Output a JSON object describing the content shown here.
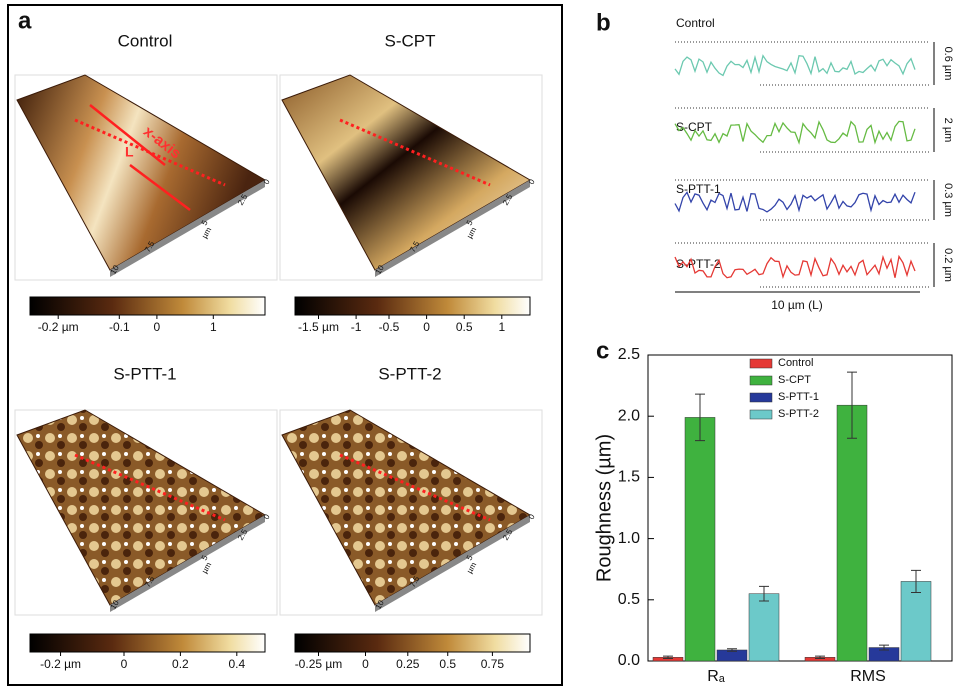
{
  "panel_a": {
    "label": "a",
    "images": [
      {
        "title": "Control",
        "colorbar_ticks": [
          "-0.2 µm",
          "-0.1",
          "0",
          "1"
        ],
        "axis_ticks": [
          "10",
          "7.5",
          "5",
          "µm",
          "2.5",
          "0"
        ],
        "annotations": [
          "x-axis",
          "L"
        ]
      },
      {
        "title": "S-CPT",
        "colorbar_ticks": [
          "-1.5 µm",
          "-1",
          "-0.5",
          "0",
          "0.5",
          "1"
        ],
        "axis_ticks": [
          "10",
          "7.5",
          "5",
          "µm",
          "2.5",
          "0"
        ]
      },
      {
        "title": "S-PTT-1",
        "colorbar_ticks": [
          "-0.2 µm",
          "0",
          "0.2",
          "0.4"
        ],
        "axis_ticks": [
          "10",
          "7.5",
          "5",
          "µm",
          "2.5",
          "0"
        ]
      },
      {
        "title": "S-PTT-2",
        "colorbar_ticks": [
          "-0.25 µm",
          "0",
          "0.25",
          "0.5",
          "0.75"
        ],
        "axis_ticks": [
          "10",
          "7.5",
          "5",
          "µm",
          "2.5",
          "0"
        ]
      }
    ]
  },
  "panel_b": {
    "label": "b",
    "profiles": [
      {
        "name": "Control",
        "range": "0.6 µm"
      },
      {
        "name": "S-CPT",
        "range": "2 µm"
      },
      {
        "name": "S-PTT-1",
        "range": "0.3 µm"
      },
      {
        "name": "S-PTT-2",
        "range": "0.2 µm"
      }
    ],
    "scale": "10 µm (L)"
  },
  "chart_data": {
    "type": "bar",
    "label": "c",
    "y_label": "Roughness (µm)",
    "categories": [
      "Rₐ",
      "RMS"
    ],
    "series": [
      {
        "name": "Control",
        "color": "#e53935",
        "values": [
          0.03,
          0.03
        ],
        "errors": [
          0.01,
          0.01
        ]
      },
      {
        "name": "S-CPT",
        "color": "#3fb23f",
        "values": [
          1.99,
          2.09
        ],
        "errors": [
          0.19,
          0.27
        ]
      },
      {
        "name": "S-PTT-1",
        "color": "#26399a",
        "values": [
          0.09,
          0.11
        ],
        "errors": [
          0.01,
          0.02
        ]
      },
      {
        "name": "S-PTT-2",
        "color": "#6cc9c9",
        "values": [
          0.55,
          0.65
        ],
        "errors": [
          0.06,
          0.09
        ]
      }
    ],
    "ylim": [
      0,
      2.5
    ],
    "yticks": [
      {
        "value": 0,
        "label": "0.0"
      },
      {
        "value": 0.5,
        "label": "0.5"
      },
      {
        "value": 1,
        "label": "1.0"
      },
      {
        "value": 1.5,
        "label": "1.5"
      },
      {
        "value": 2,
        "label": "2.0"
      },
      {
        "value": 2.5,
        "label": "2.5"
      }
    ],
    "legend": "top-center"
  }
}
